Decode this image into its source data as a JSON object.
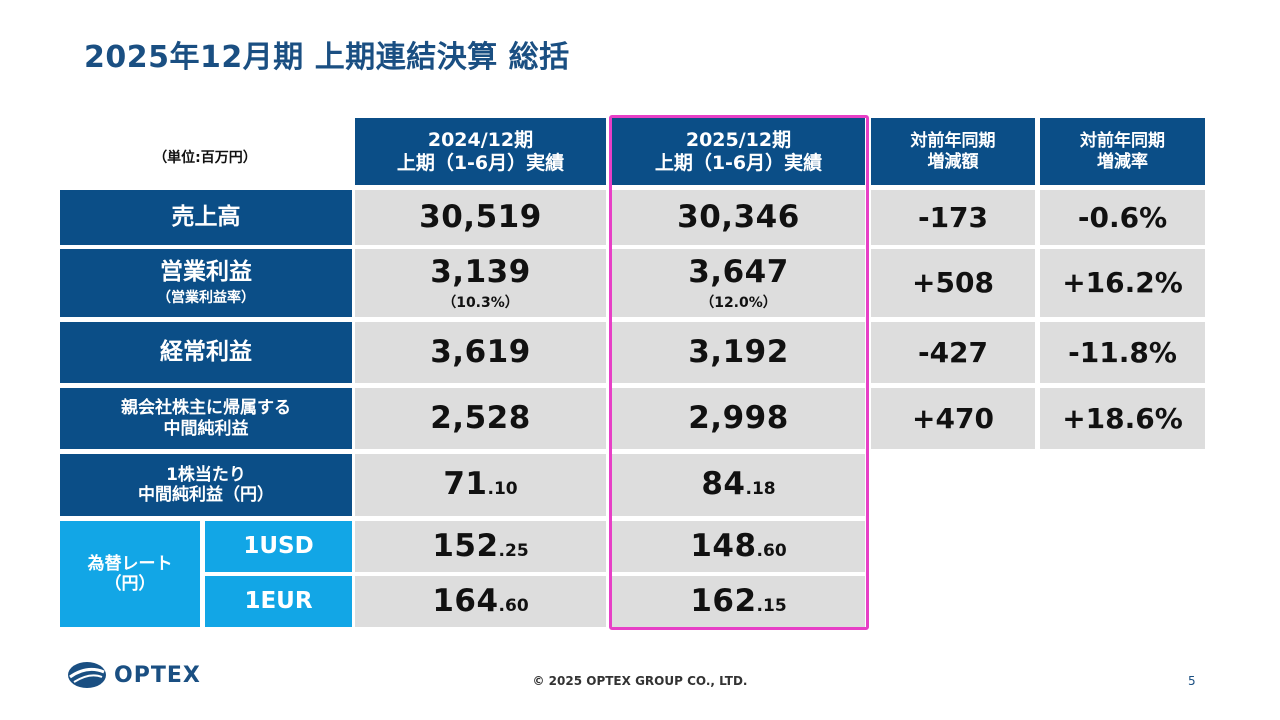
{
  "title": "2025年12月期 上期連結決算 総括",
  "unit_note": "（単位:百万円）",
  "headers": {
    "prev_year_line1": "2024/12期",
    "prev_year_line2": "上期（1-6月）実績",
    "curr_year_line1": "2025/12期",
    "curr_year_line2": "上期（1-6月）実績",
    "yoy_amount_line1": "対前年同期",
    "yoy_amount_line2": "増減額",
    "yoy_rate_line1": "対前年同期",
    "yoy_rate_line2": "増減率"
  },
  "rows": {
    "net_sales": {
      "label": "売上高",
      "prev": "30,519",
      "curr": "30,346",
      "yoy_amount": "-173",
      "yoy_rate": "-0.6%"
    },
    "operating_income": {
      "label": "営業利益",
      "sublabel": "（営業利益率）",
      "prev": "3,139",
      "prev_sub": "（10.3%）",
      "curr": "3,647",
      "curr_sub": "（12.0%）",
      "yoy_amount": "+508",
      "yoy_rate": "+16.2%"
    },
    "ordinary_income": {
      "label": "経常利益",
      "prev": "3,619",
      "curr": "3,192",
      "yoy_amount": "-427",
      "yoy_rate": "-11.8%"
    },
    "net_income": {
      "label_line1": "親会社株主に帰属する",
      "label_line2": "中間純利益",
      "prev": "2,528",
      "curr": "2,998",
      "yoy_amount": "+470",
      "yoy_rate": "+18.6%"
    },
    "eps": {
      "label_line1": "1株当たり",
      "label_line2": "中間純利益（円）",
      "prev_int": "71",
      "prev_dec": ".10",
      "curr_int": "84",
      "curr_dec": ".18"
    },
    "fx": {
      "label_line1": "為替レート",
      "label_line2": "（円）",
      "usd": {
        "label": "1USD",
        "prev_int": "152",
        "prev_dec": ".25",
        "curr_int": "148",
        "curr_dec": ".60"
      },
      "eur": {
        "label": "1EUR",
        "prev_int": "164",
        "prev_dec": ".60",
        "curr_int": "162",
        "curr_dec": ".15"
      }
    }
  },
  "highlight_color": "#e73fc6",
  "colors": {
    "dark_blue": "#0b4e87",
    "cyan": "#12a6e6",
    "gray": "#dddddd",
    "title": "#1a4f82"
  },
  "footer": {
    "logo_text": "OPTEX",
    "copyright": "© 2025 OPTEX GROUP CO., LTD.",
    "page_number": "5"
  }
}
